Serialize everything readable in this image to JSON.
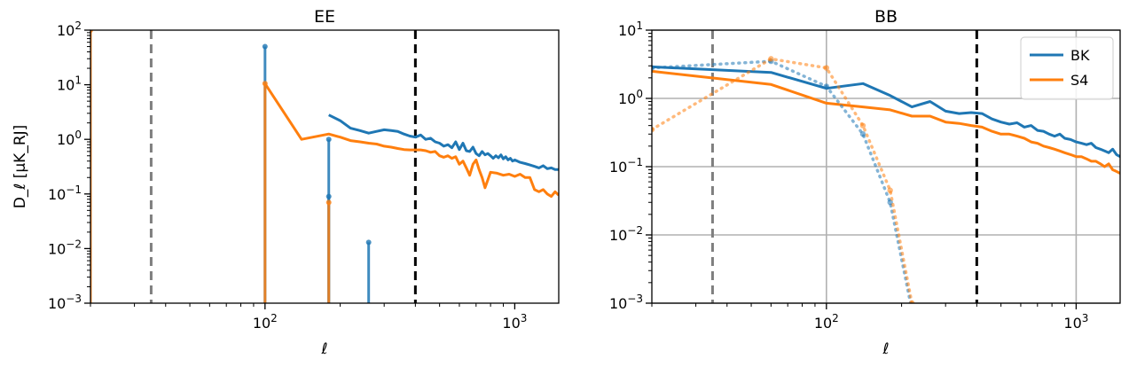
{
  "chart_data": [
    {
      "type": "line",
      "title": "EE",
      "xlabel": "ℓ",
      "ylabel": "D_ℓ [μK_RJ]",
      "xscale": "log",
      "yscale": "log",
      "xlim": [
        20,
        1500
      ],
      "ylim": [
        0.001,
        100
      ],
      "grid": false,
      "x_ticks": [
        {
          "base": "10",
          "exp": "2"
        },
        {
          "base": "10",
          "exp": "3"
        }
      ],
      "y_ticks": [
        {
          "base": "10",
          "exp": "−3"
        },
        {
          "base": "10",
          "exp": "−2"
        },
        {
          "base": "10",
          "exp": "−1"
        },
        {
          "base": "10",
          "exp": "0"
        },
        {
          "base": "10",
          "exp": "1"
        },
        {
          "base": "10",
          "exp": "2"
        }
      ],
      "vlines": [
        {
          "x": 35,
          "color": "#7f7f7f"
        },
        {
          "x": 400,
          "color": "#000000"
        }
      ],
      "series": [
        {
          "color": "#1f77b4",
          "style": "solid",
          "x": [
            180,
            200,
            220,
            240,
            260,
            280,
            300,
            320,
            340,
            360,
            380,
            400,
            420,
            440,
            460,
            480,
            500,
            520,
            540,
            560,
            580,
            600,
            620,
            640,
            660,
            680,
            700,
            720,
            740,
            760,
            780,
            800,
            820,
            840,
            860,
            880,
            900,
            920,
            940,
            960,
            980,
            1000,
            1050,
            1100,
            1150,
            1200,
            1250,
            1300,
            1350,
            1400,
            1450,
            1500
          ],
          "y": [
            2.8,
            2.2,
            1.6,
            1.45,
            1.3,
            1.4,
            1.5,
            1.45,
            1.4,
            1.25,
            1.15,
            1.1,
            1.2,
            1.0,
            1.05,
            0.9,
            0.85,
            0.75,
            0.8,
            0.7,
            0.9,
            0.65,
            0.85,
            0.62,
            0.6,
            0.72,
            0.55,
            0.5,
            0.6,
            0.52,
            0.55,
            0.5,
            0.45,
            0.5,
            0.46,
            0.52,
            0.44,
            0.48,
            0.42,
            0.45,
            0.4,
            0.42,
            0.38,
            0.36,
            0.34,
            0.32,
            0.3,
            0.33,
            0.29,
            0.3,
            0.28,
            0.28
          ]
        },
        {
          "color": "#ff7f0e",
          "style": "solid",
          "x": [
            100,
            140,
            180,
            200,
            220,
            240,
            260,
            280,
            300,
            320,
            340,
            360,
            380,
            400,
            420,
            440,
            460,
            480,
            500,
            520,
            540,
            560,
            580,
            600,
            620,
            640,
            660,
            680,
            700,
            720,
            740,
            760,
            780,
            800,
            850,
            900,
            950,
            1000,
            1050,
            1100,
            1150,
            1200,
            1250,
            1300,
            1350,
            1400,
            1450,
            1500
          ],
          "y": [
            10.5,
            1.0,
            1.25,
            1.1,
            0.95,
            0.9,
            0.85,
            0.82,
            0.75,
            0.72,
            0.68,
            0.65,
            0.64,
            0.64,
            0.64,
            0.62,
            0.58,
            0.6,
            0.5,
            0.47,
            0.5,
            0.45,
            0.48,
            0.35,
            0.4,
            0.3,
            0.22,
            0.35,
            0.42,
            0.28,
            0.2,
            0.13,
            0.18,
            0.25,
            0.24,
            0.22,
            0.23,
            0.21,
            0.23,
            0.2,
            0.2,
            0.12,
            0.11,
            0.12,
            0.1,
            0.09,
            0.11,
            0.095
          ]
        },
        {
          "color": "#1f77b4",
          "style": "stem",
          "x": [
            100,
            180,
            180,
            260
          ],
          "y": [
            50,
            1.0,
            0.09,
            0.013
          ]
        },
        {
          "color": "#ff7f0e",
          "style": "stem",
          "x": [
            20,
            100,
            180
          ],
          "y": [
            100,
            10.5,
            0.07
          ]
        }
      ]
    },
    {
      "type": "line",
      "title": "BB",
      "xlabel": "ℓ",
      "ylabel": "",
      "xscale": "log",
      "yscale": "log",
      "xlim": [
        20,
        1500
      ],
      "ylim": [
        0.001,
        10
      ],
      "grid": true,
      "legend_position": "top-right",
      "x_ticks": [
        {
          "base": "10",
          "exp": "2"
        },
        {
          "base": "10",
          "exp": "3"
        }
      ],
      "y_ticks": [
        {
          "base": "10",
          "exp": "−3"
        },
        {
          "base": "10",
          "exp": "−2"
        },
        {
          "base": "10",
          "exp": "−1"
        },
        {
          "base": "10",
          "exp": "0"
        },
        {
          "base": "10",
          "exp": "1"
        }
      ],
      "vlines": [
        {
          "x": 35,
          "color": "#7f7f7f"
        },
        {
          "x": 400,
          "color": "#000000"
        }
      ],
      "series": [
        {
          "name": "BK",
          "color": "#1f77b4",
          "style": "solid",
          "x": [
            20,
            60,
            100,
            140,
            180,
            220,
            260,
            300,
            340,
            380,
            420,
            460,
            500,
            540,
            580,
            620,
            660,
            700,
            740,
            780,
            820,
            860,
            900,
            950,
            1000,
            1050,
            1100,
            1150,
            1200,
            1250,
            1300,
            1350,
            1400,
            1450,
            1500
          ],
          "y": [
            2.9,
            2.4,
            1.4,
            1.65,
            1.1,
            0.75,
            0.9,
            0.65,
            0.6,
            0.62,
            0.6,
            0.5,
            0.45,
            0.42,
            0.44,
            0.38,
            0.4,
            0.34,
            0.33,
            0.3,
            0.28,
            0.3,
            0.26,
            0.25,
            0.23,
            0.22,
            0.21,
            0.22,
            0.19,
            0.18,
            0.17,
            0.16,
            0.18,
            0.15,
            0.14
          ]
        },
        {
          "name": "S4",
          "color": "#ff7f0e",
          "style": "solid",
          "x": [
            20,
            60,
            100,
            140,
            180,
            220,
            260,
            300,
            340,
            380,
            420,
            460,
            500,
            540,
            580,
            620,
            660,
            700,
            740,
            780,
            820,
            860,
            900,
            950,
            1000,
            1050,
            1100,
            1150,
            1200,
            1250,
            1300,
            1350,
            1400,
            1450,
            1500
          ],
          "y": [
            2.5,
            1.6,
            0.85,
            0.75,
            0.68,
            0.55,
            0.55,
            0.45,
            0.43,
            0.4,
            0.38,
            0.33,
            0.3,
            0.3,
            0.28,
            0.26,
            0.23,
            0.22,
            0.2,
            0.19,
            0.18,
            0.17,
            0.16,
            0.15,
            0.14,
            0.14,
            0.13,
            0.12,
            0.12,
            0.11,
            0.1,
            0.11,
            0.09,
            0.085,
            0.08
          ]
        },
        {
          "color": "#1f77b4",
          "style": "dotted",
          "x": [
            20,
            60,
            100,
            140,
            180,
            220
          ],
          "y": [
            2.8,
            3.5,
            1.5,
            0.3,
            0.03,
            0.0008
          ]
        },
        {
          "color": "#ff7f0e",
          "style": "dotted",
          "x": [
            20,
            60,
            100,
            140,
            180,
            220
          ],
          "y": [
            0.35,
            3.8,
            2.8,
            0.4,
            0.045,
            0.001
          ]
        }
      ]
    }
  ]
}
